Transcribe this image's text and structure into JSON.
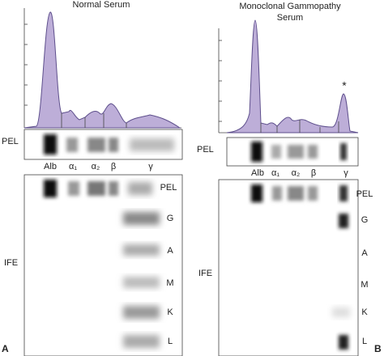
{
  "panel_a": {
    "title": "Normal Serum",
    "pel_label": "PEL",
    "fractions": [
      "Alb",
      "α₁",
      "α₂",
      "β",
      "γ"
    ],
    "ife_label": "IFE",
    "lanes": [
      "PEL",
      "G",
      "A",
      "M",
      "K",
      "L"
    ],
    "letter": "A"
  },
  "panel_b": {
    "title": [
      "Monoclonal Gammopathy",
      "Serum"
    ],
    "peak_marker": "*",
    "pel_label": "PEL",
    "fractions": [
      "Alb",
      "α₁",
      "α₂",
      "β",
      "γ"
    ],
    "ife_label": "IFE",
    "lanes": [
      "PEL",
      "G",
      "A",
      "M",
      "K",
      "L"
    ],
    "letter": "B"
  }
}
